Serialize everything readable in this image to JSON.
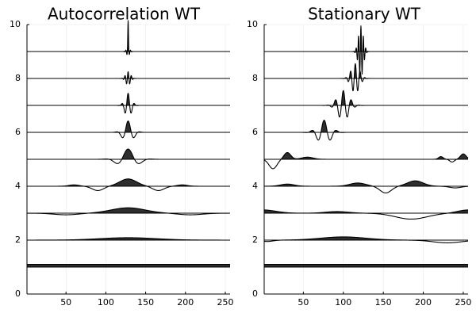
{
  "chart_data": [
    {
      "type": "line",
      "title": "Autocorrelation WT",
      "xlabel": "",
      "ylabel": "",
      "xlim": [
        1,
        256
      ],
      "ylim": [
        0,
        10
      ],
      "xticks": [
        50,
        100,
        150,
        200,
        250
      ],
      "yticks": [
        0,
        2,
        4,
        6,
        8,
        10
      ],
      "grid": true,
      "fill_positive": true,
      "series": [
        {
          "baseline": 1,
          "components": [
            {
              "kind": "offset",
              "value": 0.1
            }
          ]
        },
        {
          "baseline": 2,
          "components": [
            {
              "kind": "gauss",
              "amp": 0.09,
              "center": 128,
              "width": 50
            }
          ]
        },
        {
          "baseline": 3,
          "components": [
            {
              "kind": "gauss",
              "amp": 0.2,
              "center": 128,
              "width": 30
            },
            {
              "kind": "gauss",
              "amp": -0.06,
              "center": 50,
              "width": 22
            },
            {
              "kind": "gauss",
              "amp": -0.06,
              "center": 206,
              "width": 22
            }
          ]
        },
        {
          "baseline": 4,
          "components": [
            {
              "kind": "gauss",
              "amp": 0.27,
              "center": 128,
              "width": 15
            },
            {
              "kind": "gauss",
              "amp": -0.16,
              "center": 90,
              "width": 10
            },
            {
              "kind": "gauss",
              "amp": -0.16,
              "center": 166,
              "width": 10
            },
            {
              "kind": "gauss",
              "amp": 0.05,
              "center": 60,
              "width": 9
            },
            {
              "kind": "gauss",
              "amp": 0.05,
              "center": 196,
              "width": 9
            }
          ]
        },
        {
          "baseline": 5,
          "components": [
            {
              "kind": "morlet",
              "amp": 0.38,
              "center": 128,
              "sigma": 11,
              "period": 32
            }
          ]
        },
        {
          "baseline": 6,
          "components": [
            {
              "kind": "morlet",
              "amp": 0.42,
              "center": 128,
              "sigma": 6,
              "period": 16
            }
          ]
        },
        {
          "baseline": 7,
          "components": [
            {
              "kind": "morlet",
              "amp": 0.45,
              "center": 128,
              "sigma": 4,
              "period": 8
            }
          ]
        },
        {
          "baseline": 8,
          "components": [
            {
              "kind": "morlet",
              "amp": 0.25,
              "center": 128,
              "sigma": 3,
              "period": 4
            }
          ]
        },
        {
          "baseline": 9,
          "components": [
            {
              "kind": "spike",
              "amp": 1.0,
              "center": 128
            },
            {
              "kind": "morlet",
              "amp": 0.15,
              "center": 128,
              "sigma": 2,
              "period": 3
            }
          ]
        }
      ]
    },
    {
      "type": "line",
      "title": "Stationary WT",
      "xlabel": "",
      "ylabel": "",
      "xlim": [
        1,
        256
      ],
      "ylim": [
        0,
        10
      ],
      "xticks": [
        50,
        100,
        150,
        200,
        250
      ],
      "yticks": [
        0,
        2,
        4,
        6,
        8,
        10
      ],
      "grid": true,
      "fill_positive": true,
      "series": [
        {
          "baseline": 1,
          "components": [
            {
              "kind": "offset",
              "value": 0.1
            }
          ]
        },
        {
          "baseline": 2,
          "components": [
            {
              "kind": "gauss",
              "amp": 0.12,
              "center": 100,
              "width": 40
            },
            {
              "kind": "gauss",
              "amp": -0.1,
              "center": 230,
              "width": 25
            },
            {
              "kind": "gauss",
              "amp": -0.05,
              "center": 5,
              "width": 10
            }
          ]
        },
        {
          "baseline": 3,
          "components": [
            {
              "kind": "gauss",
              "amp": 0.12,
              "center": 0,
              "width": 22
            },
            {
              "kind": "gauss",
              "amp": 0.06,
              "center": 92,
              "width": 20
            },
            {
              "kind": "gauss",
              "amp": -0.22,
              "center": 185,
              "width": 28
            },
            {
              "kind": "gauss",
              "amp": 0.12,
              "center": 256,
              "width": 18
            }
          ]
        },
        {
          "baseline": 4,
          "components": [
            {
              "kind": "gauss",
              "amp": 0.08,
              "center": 30,
              "width": 12
            },
            {
              "kind": "gauss",
              "amp": 0.12,
              "center": 118,
              "width": 14
            },
            {
              "kind": "gauss",
              "amp": -0.25,
              "center": 153,
              "width": 10
            },
            {
              "kind": "gauss",
              "amp": 0.2,
              "center": 190,
              "width": 14
            },
            {
              "kind": "gauss",
              "amp": -0.06,
              "center": 240,
              "width": 10
            }
          ]
        },
        {
          "baseline": 5,
          "components": [
            {
              "kind": "gauss",
              "amp": -0.35,
              "center": 12,
              "width": 7
            },
            {
              "kind": "gauss",
              "amp": 0.25,
              "center": 30,
              "width": 6
            },
            {
              "kind": "gauss",
              "amp": 0.08,
              "center": 55,
              "width": 10
            },
            {
              "kind": "gauss",
              "amp": 0.1,
              "center": 222,
              "width": 4
            },
            {
              "kind": "gauss",
              "amp": -0.1,
              "center": 236,
              "width": 4
            },
            {
              "kind": "gauss",
              "amp": 0.2,
              "center": 250,
              "width": 5
            }
          ]
        },
        {
          "baseline": 6,
          "components": [
            {
              "kind": "morlet",
              "amp": 0.45,
              "center": 76,
              "sigma": 8,
              "period": 16
            }
          ]
        },
        {
          "baseline": 7,
          "components": [
            {
              "kind": "morlet",
              "amp": 0.55,
              "center": 100,
              "sigma": 7,
              "period": 10
            }
          ]
        },
        {
          "baseline": 8,
          "components": [
            {
              "kind": "morlet",
              "amp": 0.55,
              "center": 115,
              "sigma": 5,
              "period": 6
            }
          ]
        },
        {
          "baseline": 9,
          "components": [
            {
              "kind": "morlet",
              "amp": 0.95,
              "center": 122,
              "sigma": 3,
              "period": 3
            }
          ]
        }
      ]
    }
  ]
}
